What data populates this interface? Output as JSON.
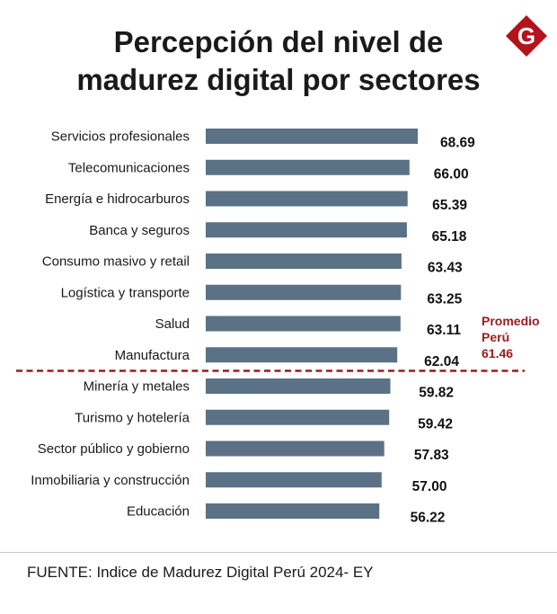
{
  "brand": {
    "logo_letter": "G",
    "logo_color": "#b5121b"
  },
  "chart_data": {
    "type": "bar",
    "orientation": "horizontal",
    "title_lines": [
      "Percepción del nivel de",
      "madurez digital por sectores"
    ],
    "categories": [
      "Servicios profesionales",
      "Telecomunicaciones",
      "Energía e hidrocarburos",
      "Banca y seguros",
      "Consumo masivo y  retail",
      "Logística y transporte",
      "Salud",
      "Manufactura",
      "Minería y metales",
      "Turismo y hotelería",
      "Sector público y gobierno",
      "Inmobiliaria y construcción",
      "Educación"
    ],
    "values": [
      68.69,
      66.0,
      65.39,
      65.18,
      63.43,
      63.25,
      63.11,
      62.04,
      59.82,
      59.42,
      57.83,
      57.0,
      56.22
    ],
    "value_labels": [
      "68.69",
      "66.00",
      "65.39",
      "65.18",
      "63.43",
      "63.25",
      "63.11",
      "62.04",
      "59.82",
      "59.42",
      "57.83",
      "57.00",
      "56.22"
    ],
    "bar_color": "#5a7186",
    "reference_line": {
      "label_lines": [
        "Promedio",
        "Perú",
        "61.46"
      ],
      "value": 61.46,
      "color": "#9b1b1f",
      "style": "dashed"
    },
    "xlim": [
      0,
      68.69
    ],
    "source": "FUENTE: Indice de Madurez Digital Perú 2024- EY"
  }
}
